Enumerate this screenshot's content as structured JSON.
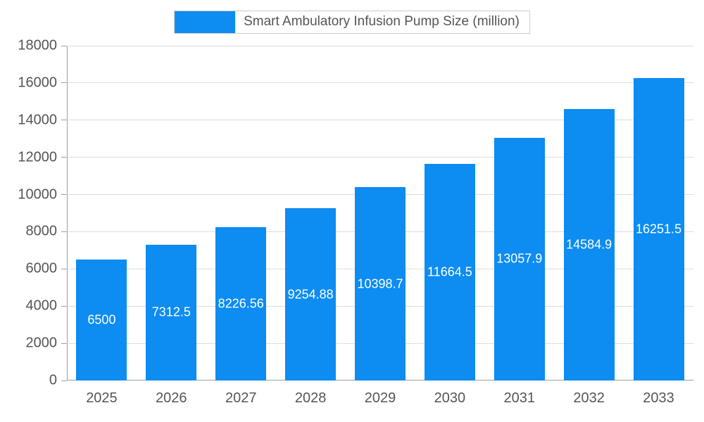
{
  "chart_data": {
    "type": "bar",
    "title": "Smart Ambulatory Infusion Pump Size (million)",
    "categories": [
      "2025",
      "2026",
      "2027",
      "2028",
      "2029",
      "2030",
      "2031",
      "2032",
      "2033"
    ],
    "values": [
      6500,
      7312.5,
      8226.56,
      9254.88,
      10398.7,
      11664.5,
      13057.9,
      14584.9,
      16251.5
    ],
    "value_labels": [
      "6500",
      "7312.5",
      "8226.56",
      "9254.88",
      "10398.7",
      "11664.5",
      "13057.9",
      "14584.9",
      "16251.5"
    ],
    "xlabel": "",
    "ylabel": "",
    "ylim": [
      0,
      18000
    ],
    "yticks": [
      0,
      2000,
      4000,
      6000,
      8000,
      10000,
      12000,
      14000,
      16000,
      18000
    ],
    "grid": true,
    "legend_position": "top",
    "colors": {
      "bar": "#0d8cf2",
      "bar_label_text": "#ffffff",
      "axis_text": "#555555",
      "gridline": "#dddddd",
      "axis_line": "#9e9e9e",
      "legend_border": "#cccccc"
    }
  }
}
